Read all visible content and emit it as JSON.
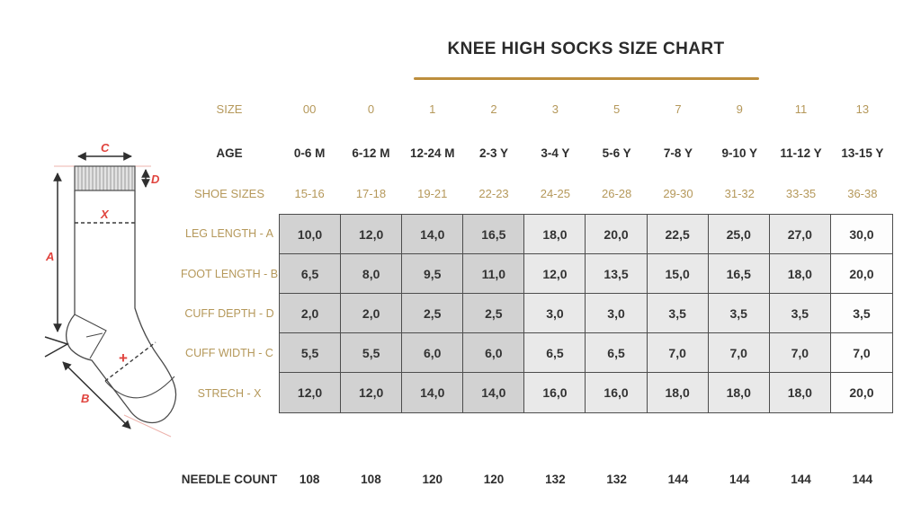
{
  "title": "KNEE HIGH SOCKS SIZE CHART",
  "diagram": {
    "labels": {
      "a": "A",
      "b": "B",
      "c": "C",
      "d": "D",
      "x": "X",
      "plus": "+"
    }
  },
  "colors": {
    "gold_label": "#b5985a",
    "title_rule": "#bd8e3d",
    "diagram_red": "#e0433d",
    "table_border": "#4d4d4d",
    "cell_dark": "#d2d2d2",
    "cell_light": "#e9e9e9",
    "cell_white": "#fdfdfd",
    "text_dark": "#2e2e2e"
  },
  "chart_data": {
    "type": "table",
    "title": "KNEE HIGH SOCKS SIZE CHART",
    "header_rows": [
      {
        "label": "SIZE",
        "style": "gold",
        "values": [
          "00",
          "0",
          "1",
          "2",
          "3",
          "5",
          "7",
          "9",
          "11",
          "13"
        ]
      },
      {
        "label": "AGE",
        "style": "dark",
        "values": [
          "0-6 M",
          "6-12 M",
          "12-24 M",
          "2-3 Y",
          "3-4 Y",
          "5-6 Y",
          "7-8 Y",
          "9-10 Y",
          "11-12 Y",
          "13-15 Y"
        ]
      },
      {
        "label": "SHOE SIZES",
        "style": "gold",
        "values": [
          "15-16",
          "17-18",
          "19-21",
          "22-23",
          "24-25",
          "26-28",
          "29-30",
          "31-32",
          "33-35",
          "36-38"
        ]
      }
    ],
    "measurement_rows": [
      {
        "label": "LEG LENGTH - A",
        "values": [
          "10,0",
          "12,0",
          "14,0",
          "16,5",
          "18,0",
          "20,0",
          "22,5",
          "25,0",
          "27,0",
          "30,0"
        ]
      },
      {
        "label": "FOOT LENGTH - B",
        "values": [
          "6,5",
          "8,0",
          "9,5",
          "11,0",
          "12,0",
          "13,5",
          "15,0",
          "16,5",
          "18,0",
          "20,0"
        ]
      },
      {
        "label": "CUFF DEPTH - D",
        "values": [
          "2,0",
          "2,0",
          "2,5",
          "2,5",
          "3,0",
          "3,0",
          "3,5",
          "3,5",
          "3,5",
          "3,5"
        ]
      },
      {
        "label": "CUFF WIDTH - C",
        "values": [
          "5,5",
          "5,5",
          "6,0",
          "6,0",
          "6,5",
          "6,5",
          "7,0",
          "7,0",
          "7,0",
          "7,0"
        ]
      },
      {
        "label": "STRECH - X",
        "values": [
          "12,0",
          "12,0",
          "14,0",
          "14,0",
          "16,0",
          "16,0",
          "18,0",
          "18,0",
          "18,0",
          "20,0"
        ]
      }
    ],
    "footer_row": {
      "label": "NEEDLE COUNT",
      "style": "dark",
      "values": [
        "108",
        "108",
        "120",
        "120",
        "132",
        "132",
        "144",
        "144",
        "144",
        "144"
      ]
    },
    "column_shades": [
      "dark",
      "dark",
      "dark",
      "dark",
      "light",
      "light",
      "light",
      "light",
      "light",
      "white"
    ]
  }
}
